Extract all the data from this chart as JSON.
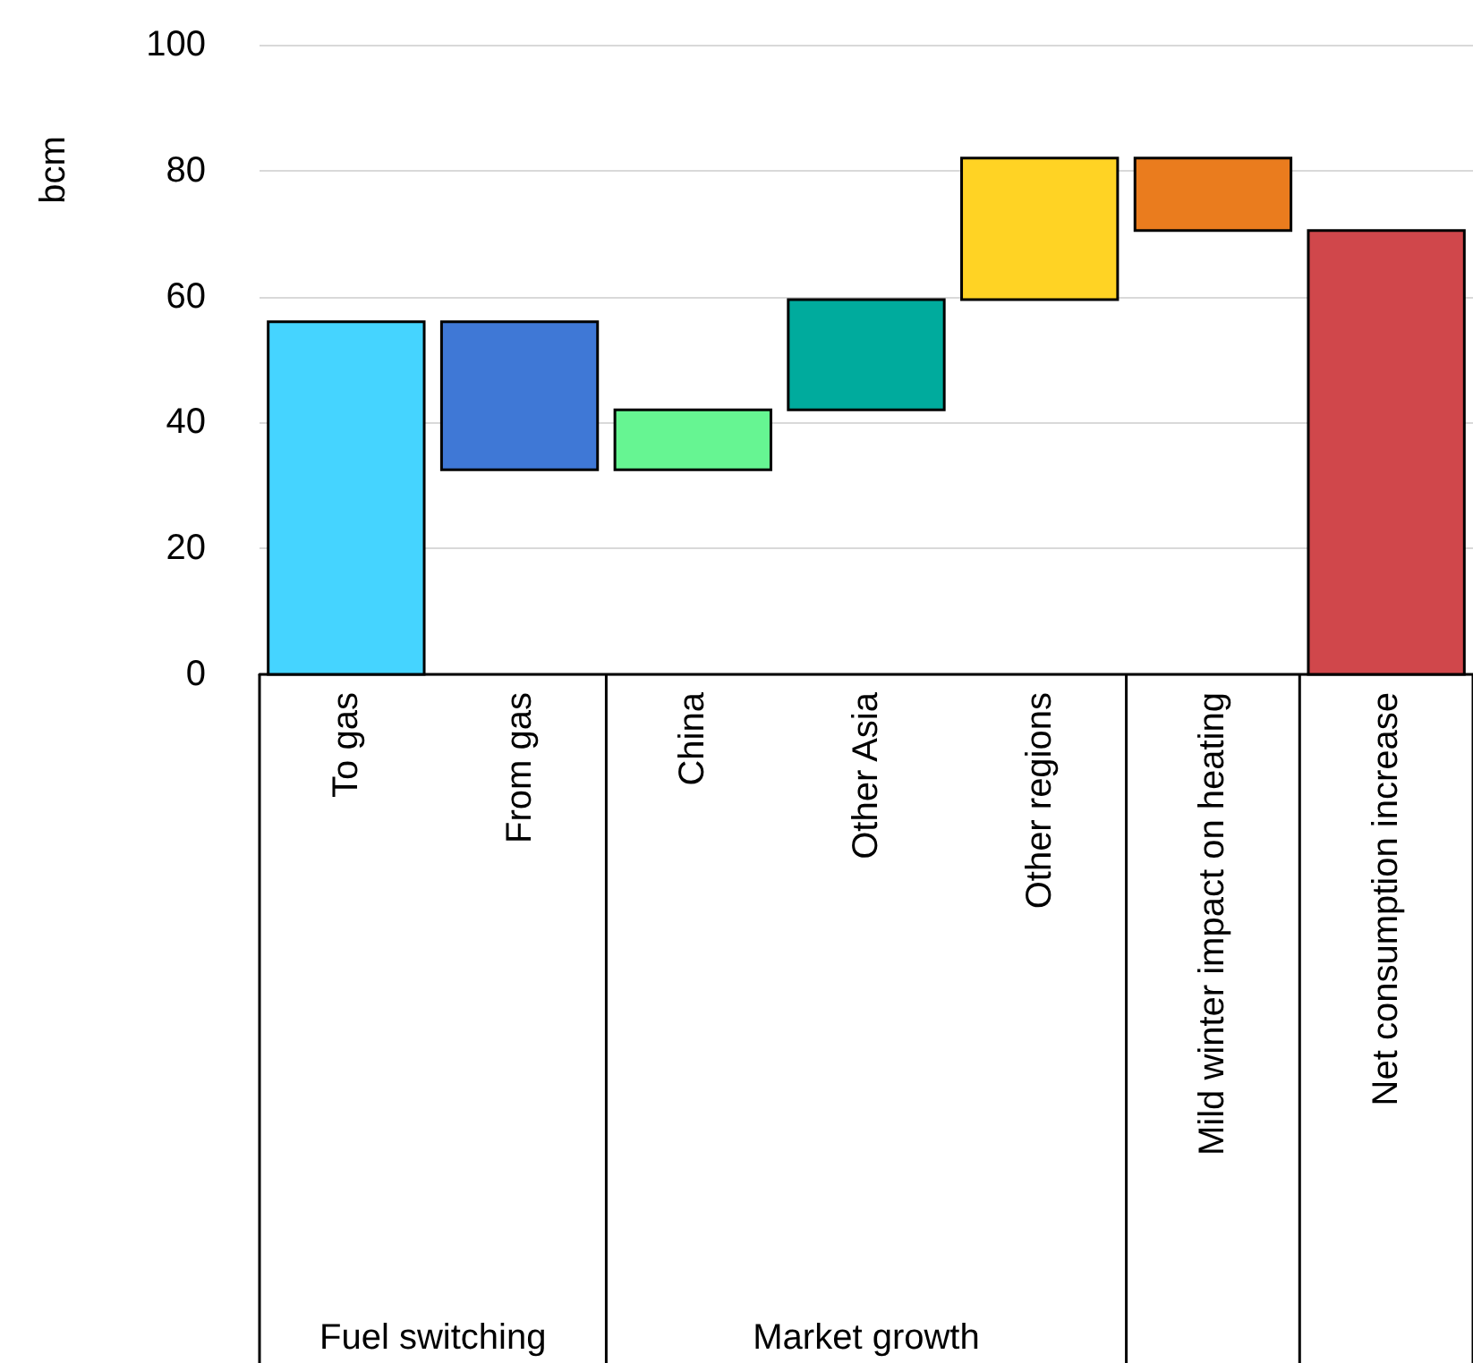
{
  "chart_data": {
    "type": "bar",
    "ylabel": "bcm",
    "categories": [
      "To gas",
      "From gas",
      "China",
      "Other Asia",
      "Other regions",
      "Mild winter impact on heating",
      "Net consumption increase"
    ],
    "values": [
      56,
      23.5,
      9.5,
      17.5,
      22.5,
      11.5,
      70.5
    ],
    "base": [
      0,
      32.5,
      32.5,
      42,
      59.5,
      70.5,
      0
    ],
    "colors": [
      "#45d4ff",
      "#3f78d6",
      "#66f592",
      "#00ab9d",
      "#ffd324",
      "#ea7c1e",
      "#d0474b"
    ],
    "ylim": [
      0,
      100
    ],
    "yticks": [
      0,
      20,
      40,
      60,
      80,
      100
    ],
    "grid": "y",
    "annotations": [
      "Fuel switching",
      "Market growth"
    ]
  }
}
